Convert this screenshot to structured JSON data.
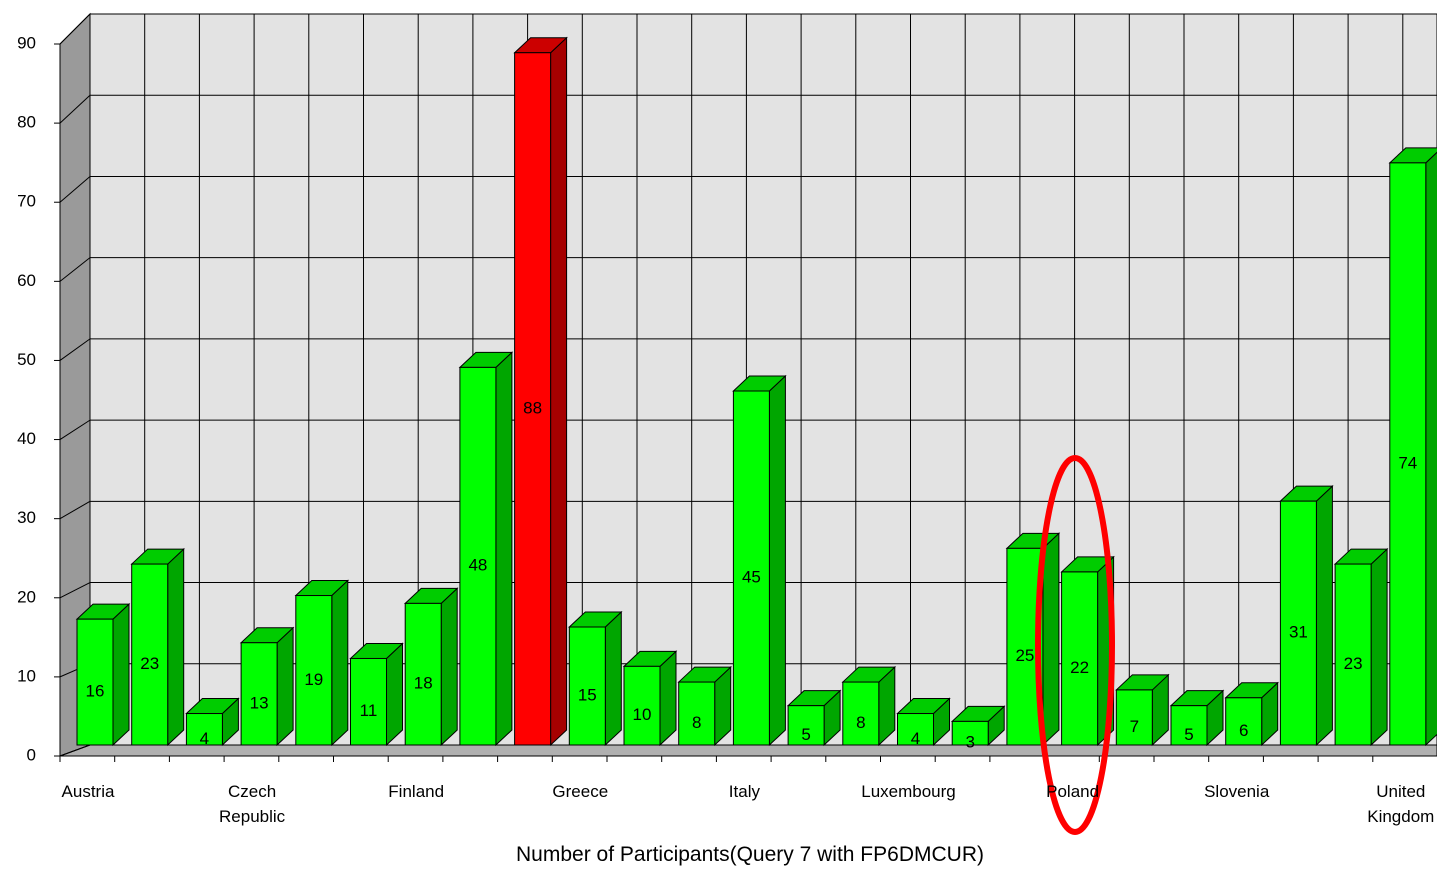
{
  "chart_data": {
    "type": "bar3d",
    "x_label": "Number of Participants(Query 7 with FP6DMCUR)",
    "categories": [
      "Austria",
      null,
      null,
      "Czech Republic",
      null,
      null,
      "Finland",
      null,
      null,
      "Greece",
      null,
      null,
      "Italy",
      null,
      null,
      "Luxembourg",
      null,
      null,
      "Poland",
      null,
      null,
      "Slovenia",
      null,
      null,
      "United Kingdom"
    ],
    "values": [
      16,
      23,
      4,
      13,
      19,
      11,
      18,
      48,
      88,
      15,
      10,
      8,
      45,
      5,
      8,
      4,
      3,
      25,
      22,
      7,
      5,
      6,
      31,
      23,
      74
    ],
    "colors": [
      "#00ff00",
      "#00ff00",
      "#00ff00",
      "#00ff00",
      "#00ff00",
      "#00ff00",
      "#00ff00",
      "#00ff00",
      "#ff0000",
      "#00ff00",
      "#00ff00",
      "#00ff00",
      "#00ff00",
      "#00ff00",
      "#00ff00",
      "#00ff00",
      "#00ff00",
      "#00ff00",
      "#00ff00",
      "#00ff00",
      "#00ff00",
      "#00ff00",
      "#00ff00",
      "#00ff00",
      "#00ff00"
    ],
    "ylim": [
      0,
      90
    ],
    "yticks": [
      0,
      10,
      20,
      30,
      40,
      50,
      60,
      70,
      80,
      90
    ],
    "grid": true
  }
}
